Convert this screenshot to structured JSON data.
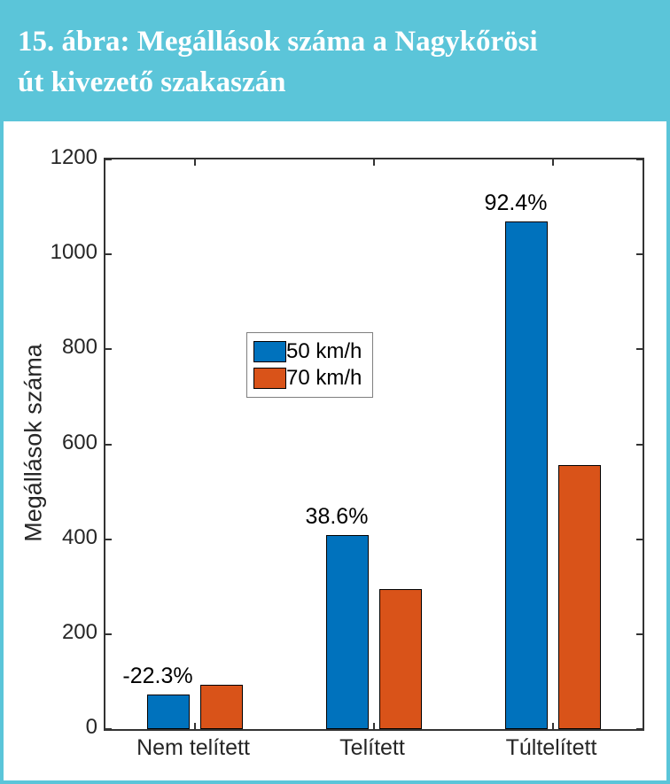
{
  "header": {
    "title_line1": "15. ábra: Megállások száma a Nagykőrösi",
    "title_line2": "út kivezető szakaszán",
    "background_color": "#5BC5D9",
    "text_color": "#FFFFFF"
  },
  "chart_data": {
    "type": "bar",
    "title": "15. ábra: Megállások száma a Nagykőrösi út kivezető szakaszán",
    "categories": [
      "Nem telített",
      "Telített",
      "Túltelített"
    ],
    "series": [
      {
        "name": "50 km/h",
        "color": "#0072BD",
        "values": [
          73,
          409,
          1070
        ]
      },
      {
        "name": "70 km/h",
        "color": "#D95319",
        "values": [
          94,
          295,
          556
        ]
      }
    ],
    "bar_group_labels": [
      "-22.3%",
      "38.6%",
      "92.4%"
    ],
    "xlabel": "",
    "ylabel": "Megállások száma",
    "ylim": [
      0,
      1200
    ],
    "yticks": [
      0,
      200,
      400,
      600,
      800,
      1000,
      1200
    ],
    "grid": false,
    "legend_position": "inside-center-left",
    "axis_color": "#333333",
    "label_color": "#262626"
  }
}
